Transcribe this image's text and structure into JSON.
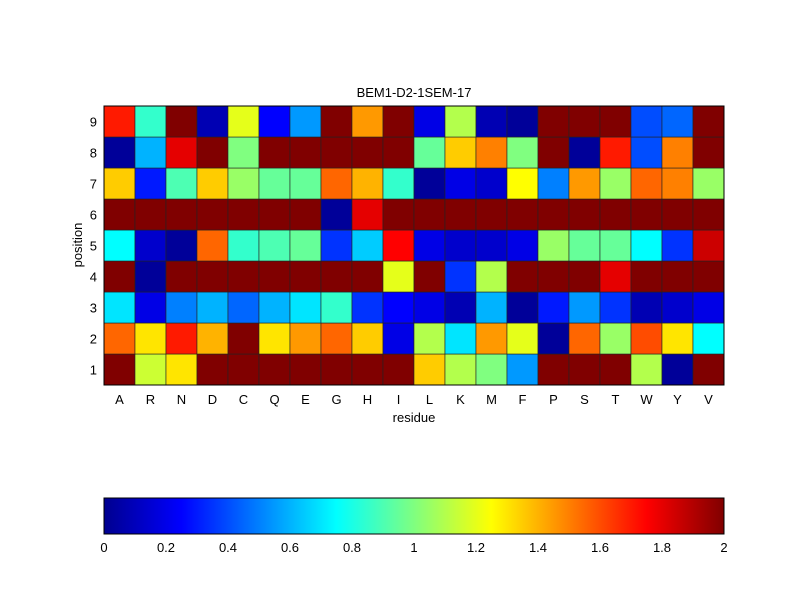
{
  "chart_data": {
    "type": "heatmap",
    "title": "BEM1-D2-1SEM-17",
    "xlabel": "residue",
    "ylabel": "position",
    "x_categories": [
      "A",
      "R",
      "N",
      "D",
      "C",
      "Q",
      "E",
      "G",
      "H",
      "I",
      "L",
      "K",
      "M",
      "F",
      "P",
      "S",
      "T",
      "W",
      "Y",
      "V"
    ],
    "y_categories": [
      "1",
      "2",
      "3",
      "4",
      "5",
      "6",
      "7",
      "8",
      "9"
    ],
    "values": [
      [
        2.0,
        1.15,
        1.3,
        2.0,
        2.0,
        2.0,
        2.0,
        2.0,
        2.0,
        2.0,
        1.35,
        1.1,
        1.0,
        0.55,
        2.0,
        2.0,
        2.0,
        1.1,
        0.05,
        2.0
      ],
      [
        1.55,
        1.3,
        1.7,
        1.4,
        2.0,
        1.3,
        1.45,
        1.55,
        1.35,
        0.2,
        1.1,
        0.7,
        1.45,
        1.2,
        0.05,
        1.55,
        1.05,
        1.6,
        1.3,
        0.75
      ],
      [
        0.7,
        0.2,
        0.5,
        0.6,
        0.45,
        0.6,
        0.7,
        0.85,
        0.35,
        0.25,
        0.2,
        0.1,
        0.6,
        0.05,
        0.3,
        0.55,
        0.35,
        0.1,
        0.15,
        0.2
      ],
      [
        2.0,
        0.05,
        2.0,
        2.0,
        2.0,
        2.0,
        2.0,
        2.0,
        2.0,
        1.2,
        2.0,
        0.35,
        1.1,
        2.0,
        2.0,
        2.0,
        1.8,
        2.0,
        2.0,
        2.0
      ],
      [
        0.75,
        0.15,
        0.05,
        1.55,
        0.85,
        0.9,
        0.95,
        0.35,
        0.65,
        1.75,
        0.2,
        0.15,
        0.15,
        0.2,
        1.05,
        0.95,
        0.95,
        0.75,
        0.35,
        1.85
      ],
      [
        2.0,
        2.0,
        2.0,
        2.0,
        2.0,
        2.0,
        2.0,
        0.05,
        1.8,
        2.0,
        2.0,
        2.0,
        2.0,
        2.0,
        2.0,
        2.0,
        2.0,
        2.0,
        2.0,
        2.0
      ],
      [
        1.35,
        0.3,
        0.9,
        1.35,
        1.05,
        0.95,
        0.95,
        1.55,
        1.4,
        0.85,
        0.05,
        0.2,
        0.15,
        1.25,
        0.5,
        1.45,
        1.05,
        1.55,
        1.5,
        1.05
      ],
      [
        0.05,
        0.6,
        1.8,
        2.0,
        1.0,
        2.0,
        2.0,
        2.0,
        2.0,
        2.0,
        0.95,
        1.35,
        1.5,
        1.0,
        2.0,
        0.05,
        1.7,
        0.4,
        1.5,
        2.0
      ],
      [
        1.7,
        0.85,
        2.0,
        0.1,
        1.2,
        0.25,
        0.55,
        2.0,
        1.45,
        2.0,
        0.2,
        1.1,
        0.1,
        0.05,
        2.0,
        2.0,
        2.0,
        0.4,
        0.45,
        2.0
      ]
    ],
    "value_range": [
      0,
      2
    ],
    "colormap": "jet",
    "colorbar": {
      "orientation": "horizontal",
      "placement": "bottom",
      "ticks": [
        "0",
        "0.2",
        "0.4",
        "0.6",
        "0.8",
        "1",
        "1.2",
        "1.4",
        "1.6",
        "1.8",
        "2"
      ]
    },
    "grid": false
  }
}
